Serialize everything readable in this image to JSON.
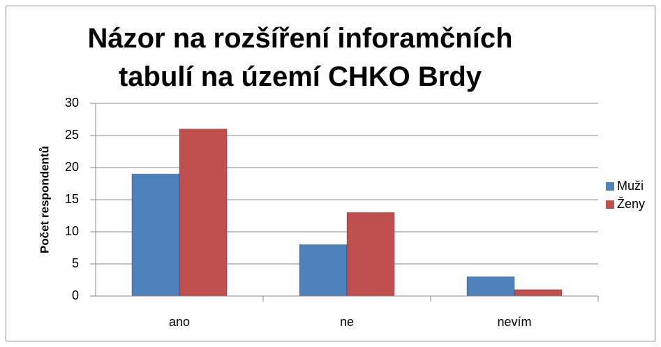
{
  "chart_data": {
    "type": "bar",
    "title": "Názor na rozšíření inforamčních tabulí na území CHKO Brdy",
    "y_label": "Počet respondentů",
    "categories": [
      "ano",
      "ne",
      "nevím"
    ],
    "series": [
      {
        "name": "Muži",
        "color": "#4f81bd",
        "values": [
          19,
          8,
          3
        ]
      },
      {
        "name": "Ženy",
        "color": "#c0504d",
        "values": [
          26,
          13,
          1
        ]
      }
    ],
    "ylim": [
      0,
      30
    ],
    "yticks": [
      0,
      5,
      10,
      15,
      20,
      25,
      30
    ],
    "grid": true,
    "legend": "right"
  }
}
